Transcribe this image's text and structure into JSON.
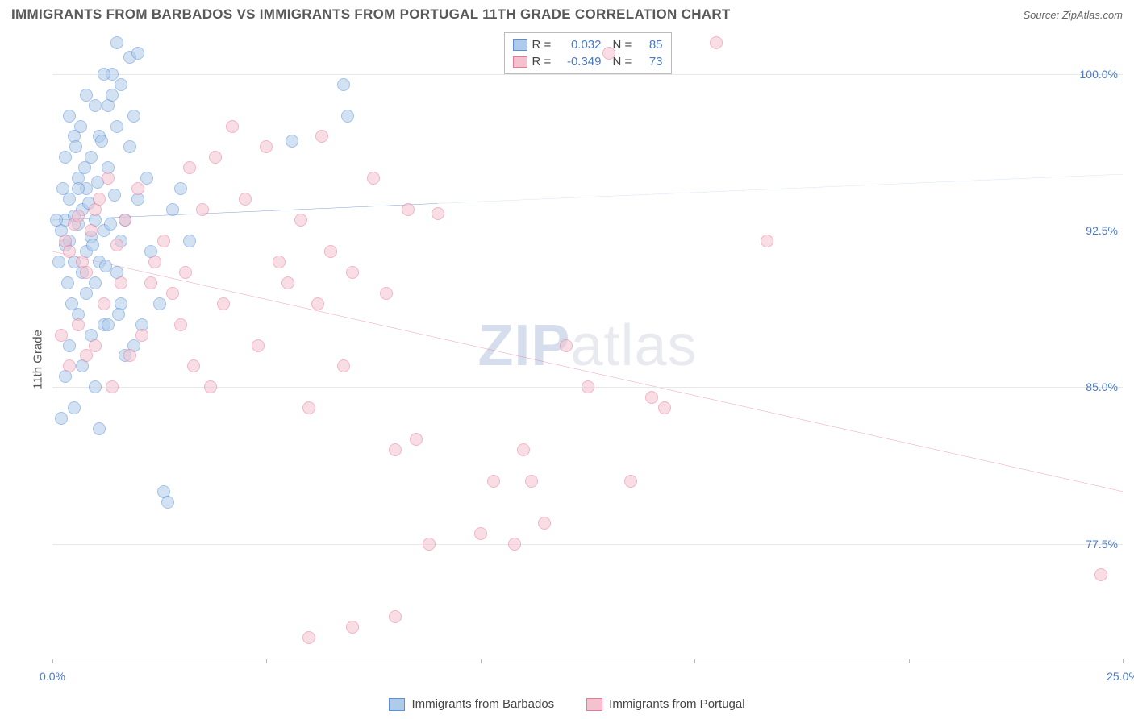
{
  "title": "IMMIGRANTS FROM BARBADOS VS IMMIGRANTS FROM PORTUGAL 11TH GRADE CORRELATION CHART",
  "source": "Source: ZipAtlas.com",
  "watermark_bold": "ZIP",
  "watermark_rest": "atlas",
  "chart": {
    "type": "scatter",
    "background_color": "#ffffff",
    "grid_color": "#e8e8e8",
    "axis_color": "#bbbbbb",
    "tick_label_color": "#4a7ac7",
    "ylabel": "11th Grade",
    "ylabel_fontsize": 15,
    "xlim": [
      0,
      25
    ],
    "ylim": [
      72,
      102
    ],
    "x_ticks": [
      0,
      5,
      10,
      15,
      20,
      25
    ],
    "x_tick_labels": {
      "0": "0.0%",
      "25": "25.0%"
    },
    "y_gridlines": [
      77.5,
      85.0,
      92.5,
      100.0
    ],
    "y_tick_labels": [
      "77.5%",
      "85.0%",
      "92.5%",
      "100.0%"
    ],
    "marker_radius": 8,
    "marker_stroke_width": 1.5,
    "series": [
      {
        "name": "Immigrants from Barbados",
        "fill": "#aecbeb",
        "stroke": "#5b8fd6",
        "fill_opacity": 0.55,
        "line_color": "#2e5fb3",
        "line_width": 2.5,
        "dash_color": "#5b8fd6",
        "R": "0.032",
        "N": "85",
        "trend": {
          "x1": 0,
          "y1": 93.0,
          "x2": 9.0,
          "y2": 93.8,
          "dash_to_x": 25,
          "dash_to_y": 95.2
        },
        "points": [
          [
            0.2,
            92.5
          ],
          [
            0.3,
            93.0
          ],
          [
            0.3,
            91.8
          ],
          [
            0.4,
            92.0
          ],
          [
            0.4,
            94.0
          ],
          [
            0.5,
            91.0
          ],
          [
            0.5,
            93.2
          ],
          [
            0.6,
            92.8
          ],
          [
            0.6,
            95.0
          ],
          [
            0.7,
            90.5
          ],
          [
            0.7,
            93.5
          ],
          [
            0.8,
            91.5
          ],
          [
            0.8,
            94.5
          ],
          [
            0.9,
            92.2
          ],
          [
            0.9,
            96.0
          ],
          [
            1.0,
            93.0
          ],
          [
            1.0,
            90.0
          ],
          [
            1.1,
            97.0
          ],
          [
            1.1,
            91.0
          ],
          [
            1.2,
            88.0
          ],
          [
            1.2,
            92.5
          ],
          [
            1.3,
            98.5
          ],
          [
            1.3,
            95.5
          ],
          [
            1.4,
            100.0
          ],
          [
            1.4,
            99.0
          ],
          [
            1.5,
            101.5
          ],
          [
            1.5,
            97.5
          ],
          [
            1.6,
            99.5
          ],
          [
            1.6,
            89.0
          ],
          [
            1.7,
            86.5
          ],
          [
            1.8,
            96.5
          ],
          [
            1.8,
            100.8
          ],
          [
            1.9,
            98.0
          ],
          [
            2.0,
            101.0
          ],
          [
            2.0,
            94.0
          ],
          [
            0.3,
            85.5
          ],
          [
            0.4,
            87.0
          ],
          [
            0.5,
            84.0
          ],
          [
            0.6,
            88.5
          ],
          [
            0.7,
            86.0
          ],
          [
            0.8,
            89.5
          ],
          [
            0.9,
            87.5
          ],
          [
            1.0,
            85.0
          ],
          [
            1.1,
            83.0
          ],
          [
            1.3,
            88.0
          ],
          [
            1.5,
            90.5
          ],
          [
            1.7,
            93.0
          ],
          [
            2.2,
            95.0
          ],
          [
            2.3,
            91.5
          ],
          [
            2.5,
            89.0
          ],
          [
            2.6,
            80.0
          ],
          [
            2.7,
            79.5
          ],
          [
            2.8,
            93.5
          ],
          [
            0.2,
            83.5
          ],
          [
            0.3,
            96.0
          ],
          [
            0.4,
            98.0
          ],
          [
            0.5,
            97.0
          ],
          [
            0.8,
            99.0
          ],
          [
            1.0,
            98.5
          ],
          [
            1.2,
            100.0
          ],
          [
            1.6,
            92.0
          ],
          [
            1.9,
            87.0
          ],
          [
            2.1,
            88.0
          ],
          [
            0.6,
            94.5
          ],
          [
            6.8,
            99.5
          ],
          [
            6.9,
            98.0
          ],
          [
            5.6,
            96.8
          ],
          [
            3.0,
            94.5
          ],
          [
            3.2,
            92.0
          ],
          [
            0.1,
            93.0
          ],
          [
            0.15,
            91.0
          ],
          [
            0.25,
            94.5
          ],
          [
            0.35,
            90.0
          ],
          [
            0.45,
            89.0
          ],
          [
            0.55,
            96.5
          ],
          [
            0.65,
            97.5
          ],
          [
            0.75,
            95.5
          ],
          [
            0.85,
            93.8
          ],
          [
            0.95,
            91.8
          ],
          [
            1.05,
            94.8
          ],
          [
            1.15,
            96.8
          ],
          [
            1.25,
            90.8
          ],
          [
            1.35,
            92.8
          ],
          [
            1.45,
            94.2
          ],
          [
            1.55,
            88.5
          ]
        ]
      },
      {
        "name": "Immigrants from Portugal",
        "fill": "#f4c2cf",
        "stroke": "#e77a9a",
        "fill_opacity": 0.55,
        "line_color": "#e05a84",
        "line_width": 2.5,
        "R": "-0.349",
        "N": "73",
        "trend": {
          "x1": 0,
          "y1": 91.5,
          "x2": 25,
          "y2": 80.0
        },
        "points": [
          [
            0.3,
            92.0
          ],
          [
            0.4,
            91.5
          ],
          [
            0.5,
            92.8
          ],
          [
            0.6,
            93.2
          ],
          [
            0.7,
            91.0
          ],
          [
            0.8,
            90.5
          ],
          [
            0.9,
            92.5
          ],
          [
            1.0,
            93.5
          ],
          [
            1.1,
            94.0
          ],
          [
            1.3,
            95.0
          ],
          [
            1.5,
            91.8
          ],
          [
            1.7,
            93.0
          ],
          [
            2.0,
            94.5
          ],
          [
            2.3,
            90.0
          ],
          [
            2.6,
            92.0
          ],
          [
            3.0,
            88.0
          ],
          [
            3.2,
            95.5
          ],
          [
            3.3,
            86.0
          ],
          [
            3.5,
            93.5
          ],
          [
            3.7,
            85.0
          ],
          [
            3.8,
            96.0
          ],
          [
            4.0,
            89.0
          ],
          [
            4.2,
            97.5
          ],
          [
            4.5,
            94.0
          ],
          [
            4.8,
            87.0
          ],
          [
            5.0,
            96.5
          ],
          [
            5.3,
            91.0
          ],
          [
            5.5,
            90.0
          ],
          [
            5.8,
            93.0
          ],
          [
            6.0,
            84.0
          ],
          [
            6.3,
            97.0
          ],
          [
            6.5,
            91.5
          ],
          [
            6.8,
            86.0
          ],
          [
            6.0,
            73.0
          ],
          [
            7.0,
            73.5
          ],
          [
            7.0,
            90.5
          ],
          [
            7.5,
            95.0
          ],
          [
            7.8,
            89.5
          ],
          [
            8.0,
            82.0
          ],
          [
            8.0,
            74.0
          ],
          [
            8.3,
            93.5
          ],
          [
            8.5,
            82.5
          ],
          [
            8.8,
            77.5
          ],
          [
            9.0,
            93.3
          ],
          [
            10.0,
            78.0
          ],
          [
            10.3,
            80.5
          ],
          [
            10.8,
            77.5
          ],
          [
            11.0,
            82.0
          ],
          [
            11.2,
            80.5
          ],
          [
            11.5,
            78.5
          ],
          [
            12.0,
            87.0
          ],
          [
            12.5,
            85.0
          ],
          [
            13.0,
            101.0
          ],
          [
            13.5,
            80.5
          ],
          [
            14.0,
            84.5
          ],
          [
            14.3,
            84.0
          ],
          [
            15.5,
            101.5
          ],
          [
            16.7,
            92.0
          ],
          [
            24.5,
            76.0
          ],
          [
            0.2,
            87.5
          ],
          [
            0.4,
            86.0
          ],
          [
            0.6,
            88.0
          ],
          [
            0.8,
            86.5
          ],
          [
            1.0,
            87.0
          ],
          [
            1.2,
            89.0
          ],
          [
            1.4,
            85.0
          ],
          [
            1.6,
            90.0
          ],
          [
            1.8,
            86.5
          ],
          [
            2.1,
            87.5
          ],
          [
            2.4,
            91.0
          ],
          [
            2.8,
            89.5
          ],
          [
            3.1,
            90.5
          ],
          [
            6.2,
            89.0
          ]
        ]
      }
    ],
    "legend_bottom": [
      {
        "label": "Immigrants from Barbados",
        "fill": "#aecbeb",
        "stroke": "#5b8fd6"
      },
      {
        "label": "Immigrants from Portugal",
        "fill": "#f4c2cf",
        "stroke": "#e77a9a"
      }
    ]
  }
}
